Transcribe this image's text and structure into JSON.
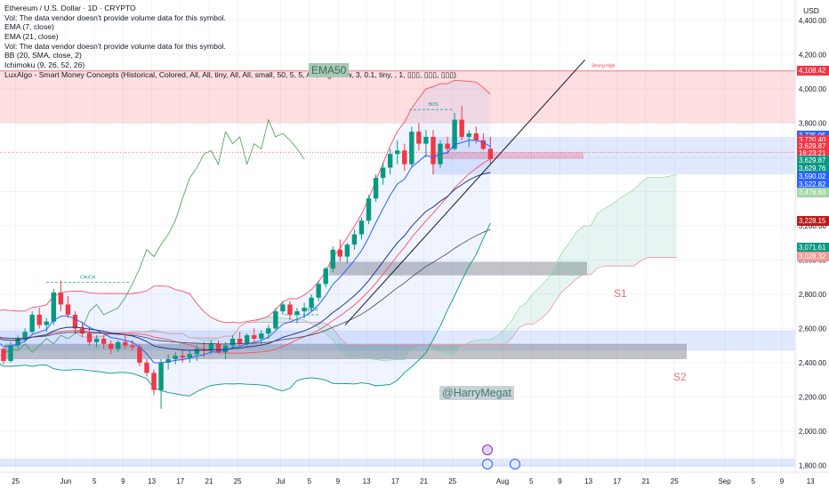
{
  "legend": {
    "title": "Ethereum / U.S. Dollar · 1D · CRYPTO",
    "vol1": "Vol: The data vendor doesn't provide volume data for this symbol.",
    "ema7": "EMA (7, close)",
    "ema21": "EMA (21, close)",
    "vol2": "Vol: The data vendor doesn't provide volume data for this symbol.",
    "bb": "BB (20, SMA, close, 2)",
    "ichimoku": "Ichimoku (9, 26, 52, 26)",
    "luxalgo": "LuxAlgo - Smart Money Concepts (Historical, Colored, All, All, tiny, All, All, small, 50, 5, 5, Atr, High/Low, 3, 0.1, tiny, , 1, ▯▯▯, ▯▯▯, ▯▯▯)"
  },
  "annotations": {
    "ema50": "EMA50",
    "author": "@HarryMegat",
    "s1": "S1",
    "s2": "S2",
    "strong_high": "Strong High",
    "choch": "CHoCH",
    "bos": "BOS"
  },
  "currency": "USD",
  "price_labels": [
    {
      "text": "4,108.42",
      "price": 4108.42,
      "color": "#f23645"
    },
    {
      "text": "3,725.05",
      "price": 3725.05,
      "color": "#2962ff"
    },
    {
      "text": "3,720.40",
      "price": 3700,
      "color": "#f23645"
    },
    {
      "text": "3,629.87",
      "price": 3665,
      "color": "#f23645"
    },
    {
      "text": "16:23:21",
      "price": 3625,
      "color": "#f23645"
    },
    {
      "text": "3,629.87",
      "price": 3580,
      "color": "#089981"
    },
    {
      "text": "3,629.76",
      "price": 3533,
      "color": "#089981"
    },
    {
      "text": "3,590.02",
      "price": 3486,
      "color": "#2962ff"
    },
    {
      "text": "3,522.82",
      "price": 3440,
      "color": "#2962ff"
    },
    {
      "text": "3,476.60",
      "price": 3393,
      "color": "#a5d6a7"
    },
    {
      "text": "3,228.15",
      "price": 3228,
      "color": "#b71c1c"
    },
    {
      "text": "3,071.61",
      "price": 3071,
      "color": "#089981"
    },
    {
      "text": "3,028.32",
      "price": 3022,
      "color": "#ef9a9a"
    }
  ],
  "colors": {
    "up": "#089981",
    "down": "#f23645",
    "bb": "#f7525f",
    "ema": "#2962ff",
    "grid": "#f0f3fa"
  },
  "chart_data": {
    "type": "candlestick",
    "yticks": [
      "4,400.00",
      "4,200.00",
      "4,000.00",
      "3,800.00",
      "3,600.00",
      "3,400.00",
      "3,200.00",
      "3,000.00",
      "2,800.00",
      "2,600.00",
      "2,400.00",
      "2,200.00",
      "2,000.00",
      "1,800.00"
    ],
    "ytick_values": [
      4400,
      4200,
      4000,
      3800,
      3600,
      3400,
      3200,
      3000,
      2800,
      2600,
      2400,
      2200,
      2000,
      1800
    ],
    "ylim": [
      1760,
      4520
    ],
    "xticks": [
      {
        "label": "25",
        "day": -7
      },
      {
        "label": "Jun",
        "day": 0
      },
      {
        "label": "5",
        "day": 4
      },
      {
        "label": "9",
        "day": 8
      },
      {
        "label": "13",
        "day": 12
      },
      {
        "label": "17",
        "day": 16
      },
      {
        "label": "21",
        "day": 20
      },
      {
        "label": "25",
        "day": 24
      },
      {
        "label": "Jul",
        "day": 30
      },
      {
        "label": "5",
        "day": 34
      },
      {
        "label": "9",
        "day": 38
      },
      {
        "label": "13",
        "day": 42
      },
      {
        "label": "17",
        "day": 46
      },
      {
        "label": "21",
        "day": 50
      },
      {
        "label": "25",
        "day": 54
      },
      {
        "label": "Aug",
        "day": 61
      },
      {
        "label": "5",
        "day": 65
      },
      {
        "label": "9",
        "day": 69
      },
      {
        "label": "13",
        "day": 73
      },
      {
        "label": "17",
        "day": 77
      },
      {
        "label": "21",
        "day": 81
      },
      {
        "label": "25",
        "day": 85
      },
      {
        "label": "Sep",
        "day": 92
      },
      {
        "label": "5",
        "day": 96
      },
      {
        "label": "9",
        "day": 100
      },
      {
        "label": "13",
        "day": 104
      }
    ],
    "candles": [
      [
        2590,
        2640,
        2520,
        2550
      ],
      [
        2550,
        2570,
        2460,
        2480
      ],
      [
        2480,
        2560,
        2470,
        2540
      ],
      [
        2540,
        2600,
        2500,
        2520
      ],
      [
        2520,
        2650,
        2510,
        2630
      ],
      [
        2630,
        2680,
        2590,
        2600
      ],
      [
        2600,
        2620,
        2520,
        2550
      ],
      [
        2550,
        2600,
        2500,
        2580
      ],
      [
        2580,
        2700,
        2560,
        2670
      ],
      [
        2670,
        2690,
        2580,
        2610
      ],
      [
        2610,
        2630,
        2560,
        2580
      ],
      [
        2580,
        2620,
        2520,
        2530
      ],
      [
        2530,
        2560,
        2460,
        2480
      ],
      [
        2480,
        2540,
        2440,
        2500
      ],
      [
        2500,
        2560,
        2470,
        2540
      ],
      [
        2540,
        2580,
        2450,
        2480
      ],
      [
        2480,
        2490,
        2390,
        2410
      ],
      [
        2410,
        2520,
        2400,
        2500
      ],
      [
        2500,
        2560,
        2480,
        2540
      ],
      [
        2540,
        2600,
        2520,
        2580
      ],
      [
        2580,
        2700,
        2570,
        2680
      ],
      [
        2680,
        2720,
        2600,
        2620
      ],
      [
        2620,
        2660,
        2580,
        2640
      ],
      [
        2640,
        2830,
        2620,
        2810
      ],
      [
        2810,
        2880,
        2700,
        2740
      ],
      [
        2740,
        2790,
        2660,
        2680
      ],
      [
        2680,
        2700,
        2570,
        2600
      ],
      [
        2600,
        2640,
        2550,
        2570
      ],
      [
        2570,
        2610,
        2500,
        2520
      ],
      [
        2520,
        2560,
        2490,
        2540
      ],
      [
        2540,
        2560,
        2480,
        2510
      ],
      [
        2510,
        2530,
        2450,
        2480
      ],
      [
        2480,
        2530,
        2460,
        2520
      ],
      [
        2520,
        2560,
        2480,
        2500
      ],
      [
        2500,
        2530,
        2470,
        2490
      ],
      [
        2490,
        2510,
        2380,
        2400
      ],
      [
        2400,
        2420,
        2320,
        2340
      ],
      [
        2340,
        2360,
        2210,
        2240
      ],
      [
        2240,
        2420,
        2130,
        2400
      ],
      [
        2400,
        2450,
        2360,
        2420
      ],
      [
        2420,
        2460,
        2390,
        2440
      ],
      [
        2440,
        2480,
        2400,
        2430
      ],
      [
        2430,
        2470,
        2400,
        2450
      ],
      [
        2450,
        2500,
        2410,
        2480
      ],
      [
        2480,
        2520,
        2430,
        2470
      ],
      [
        2470,
        2530,
        2450,
        2510
      ],
      [
        2510,
        2530,
        2450,
        2460
      ],
      [
        2460,
        2520,
        2420,
        2500
      ],
      [
        2500,
        2560,
        2480,
        2540
      ],
      [
        2540,
        2580,
        2490,
        2510
      ],
      [
        2510,
        2570,
        2490,
        2560
      ],
      [
        2560,
        2600,
        2520,
        2540
      ],
      [
        2540,
        2590,
        2500,
        2570
      ],
      [
        2570,
        2620,
        2540,
        2600
      ],
      [
        2600,
        2720,
        2590,
        2700
      ],
      [
        2700,
        2760,
        2680,
        2740
      ],
      [
        2740,
        2760,
        2650,
        2680
      ],
      [
        2680,
        2720,
        2630,
        2700
      ],
      [
        2700,
        2750,
        2660,
        2720
      ],
      [
        2720,
        2800,
        2700,
        2780
      ],
      [
        2780,
        2880,
        2760,
        2860
      ],
      [
        2860,
        2960,
        2840,
        2950
      ],
      [
        2950,
        3080,
        2930,
        3060
      ],
      [
        3060,
        3120,
        2990,
        3020
      ],
      [
        3020,
        3100,
        2980,
        3090
      ],
      [
        3090,
        3180,
        3060,
        3150
      ],
      [
        3150,
        3250,
        3120,
        3230
      ],
      [
        3230,
        3380,
        3210,
        3360
      ],
      [
        3360,
        3500,
        3340,
        3480
      ],
      [
        3480,
        3570,
        3440,
        3540
      ],
      [
        3540,
        3650,
        3500,
        3620
      ],
      [
        3620,
        3700,
        3560,
        3640
      ],
      [
        3640,
        3680,
        3520,
        3560
      ],
      [
        3560,
        3780,
        3540,
        3750
      ],
      [
        3750,
        3800,
        3640,
        3680
      ],
      [
        3680,
        3760,
        3600,
        3720
      ],
      [
        3720,
        3760,
        3500,
        3560
      ],
      [
        3560,
        3700,
        3540,
        3680
      ],
      [
        3680,
        3720,
        3620,
        3650
      ],
      [
        3650,
        3860,
        3640,
        3820
      ],
      [
        3820,
        3900,
        3700,
        3720
      ],
      [
        3720,
        3760,
        3660,
        3740
      ],
      [
        3740,
        3780,
        3680,
        3700
      ],
      [
        3700,
        3740,
        3640,
        3650
      ],
      [
        3650,
        3720,
        3560,
        3590
      ]
    ]
  }
}
